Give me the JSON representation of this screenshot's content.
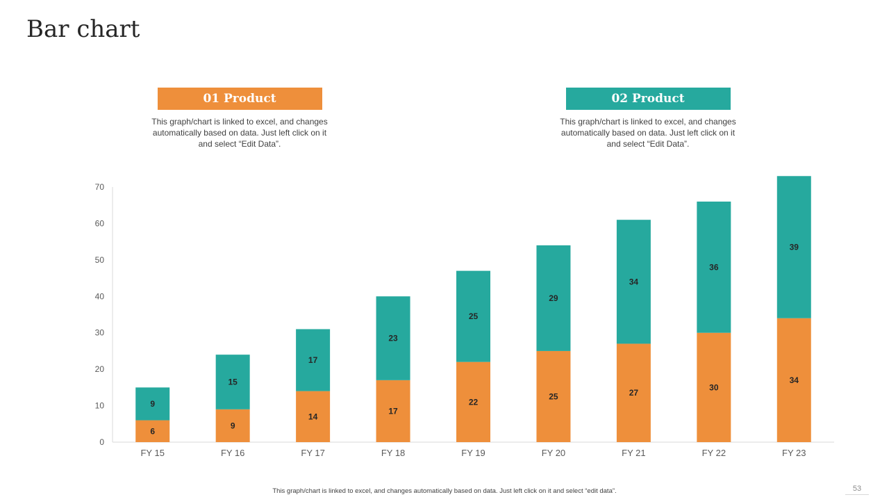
{
  "slide": {
    "title": "Bar chart",
    "page_number": "53",
    "footnote": "This graph/chart is linked to excel, and changes automatically based on data. Just left click on it and select “edit data”."
  },
  "products": [
    {
      "label": "01 Product",
      "description": "This graph/chart is linked to excel, and changes automatically based on data. Just left click on it and select “Edit Data”.",
      "color": "#EE8F3B"
    },
    {
      "label": "02 Product",
      "description": "This graph/chart is linked to excel, and changes automatically based on data. Just left click on it and select “Edit Data”.",
      "color": "#26A99E"
    }
  ],
  "chart_data": {
    "type": "bar",
    "stacked": true,
    "categories": [
      "FY 15",
      "FY 16",
      "FY 17",
      "FY 18",
      "FY 19",
      "FY 20",
      "FY 21",
      "FY 22",
      "FY 23"
    ],
    "series": [
      {
        "name": "01 Product",
        "color": "#EE8F3B",
        "values": [
          6,
          9,
          14,
          17,
          22,
          25,
          27,
          30,
          34
        ]
      },
      {
        "name": "02 Product",
        "color": "#26A99E",
        "values": [
          9,
          15,
          17,
          23,
          25,
          29,
          34,
          36,
          39
        ]
      }
    ],
    "ylim": [
      0,
      70
    ],
    "yticks": [
      0,
      10,
      20,
      30,
      40,
      50,
      60,
      70
    ],
    "grid": false,
    "data_labels": true
  }
}
